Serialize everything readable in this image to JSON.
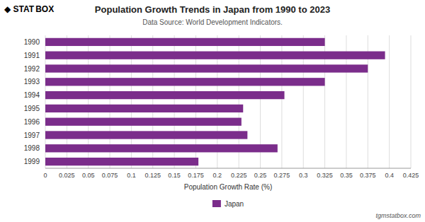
{
  "chart_data": {
    "type": "bar",
    "orientation": "horizontal",
    "title": "Population Growth Trends in Japan from 1990 to 2023",
    "subtitle": "Data Source: World Development Indicators.",
    "x_label": "Population Growth Rate (%)",
    "annotations": [
      "◆ STAT",
      "BOX",
      "tgmstatbox.com"
    ],
    "categories": [
      "1990",
      "1991",
      "1992",
      "1993",
      "1994",
      "1995",
      "1996",
      "1997",
      "1998",
      "1999"
    ],
    "series": [
      {
        "name": "Japan",
        "color": "#7B2D8B",
        "values": [
          0.325,
          0.395,
          0.375,
          0.325,
          0.278,
          0.23,
          0.228,
          0.235,
          0.27,
          0.178
        ]
      }
    ],
    "xlim": [
      0,
      0.425
    ],
    "xticks": [
      0,
      0.025,
      0.05,
      0.075,
      0.1,
      0.125,
      0.15,
      0.175,
      0.2,
      0.225,
      0.25,
      0.275,
      0.3,
      0.325,
      0.35,
      0.375,
      0.4,
      0.425
    ],
    "grid": true,
    "legend": "bottom"
  }
}
